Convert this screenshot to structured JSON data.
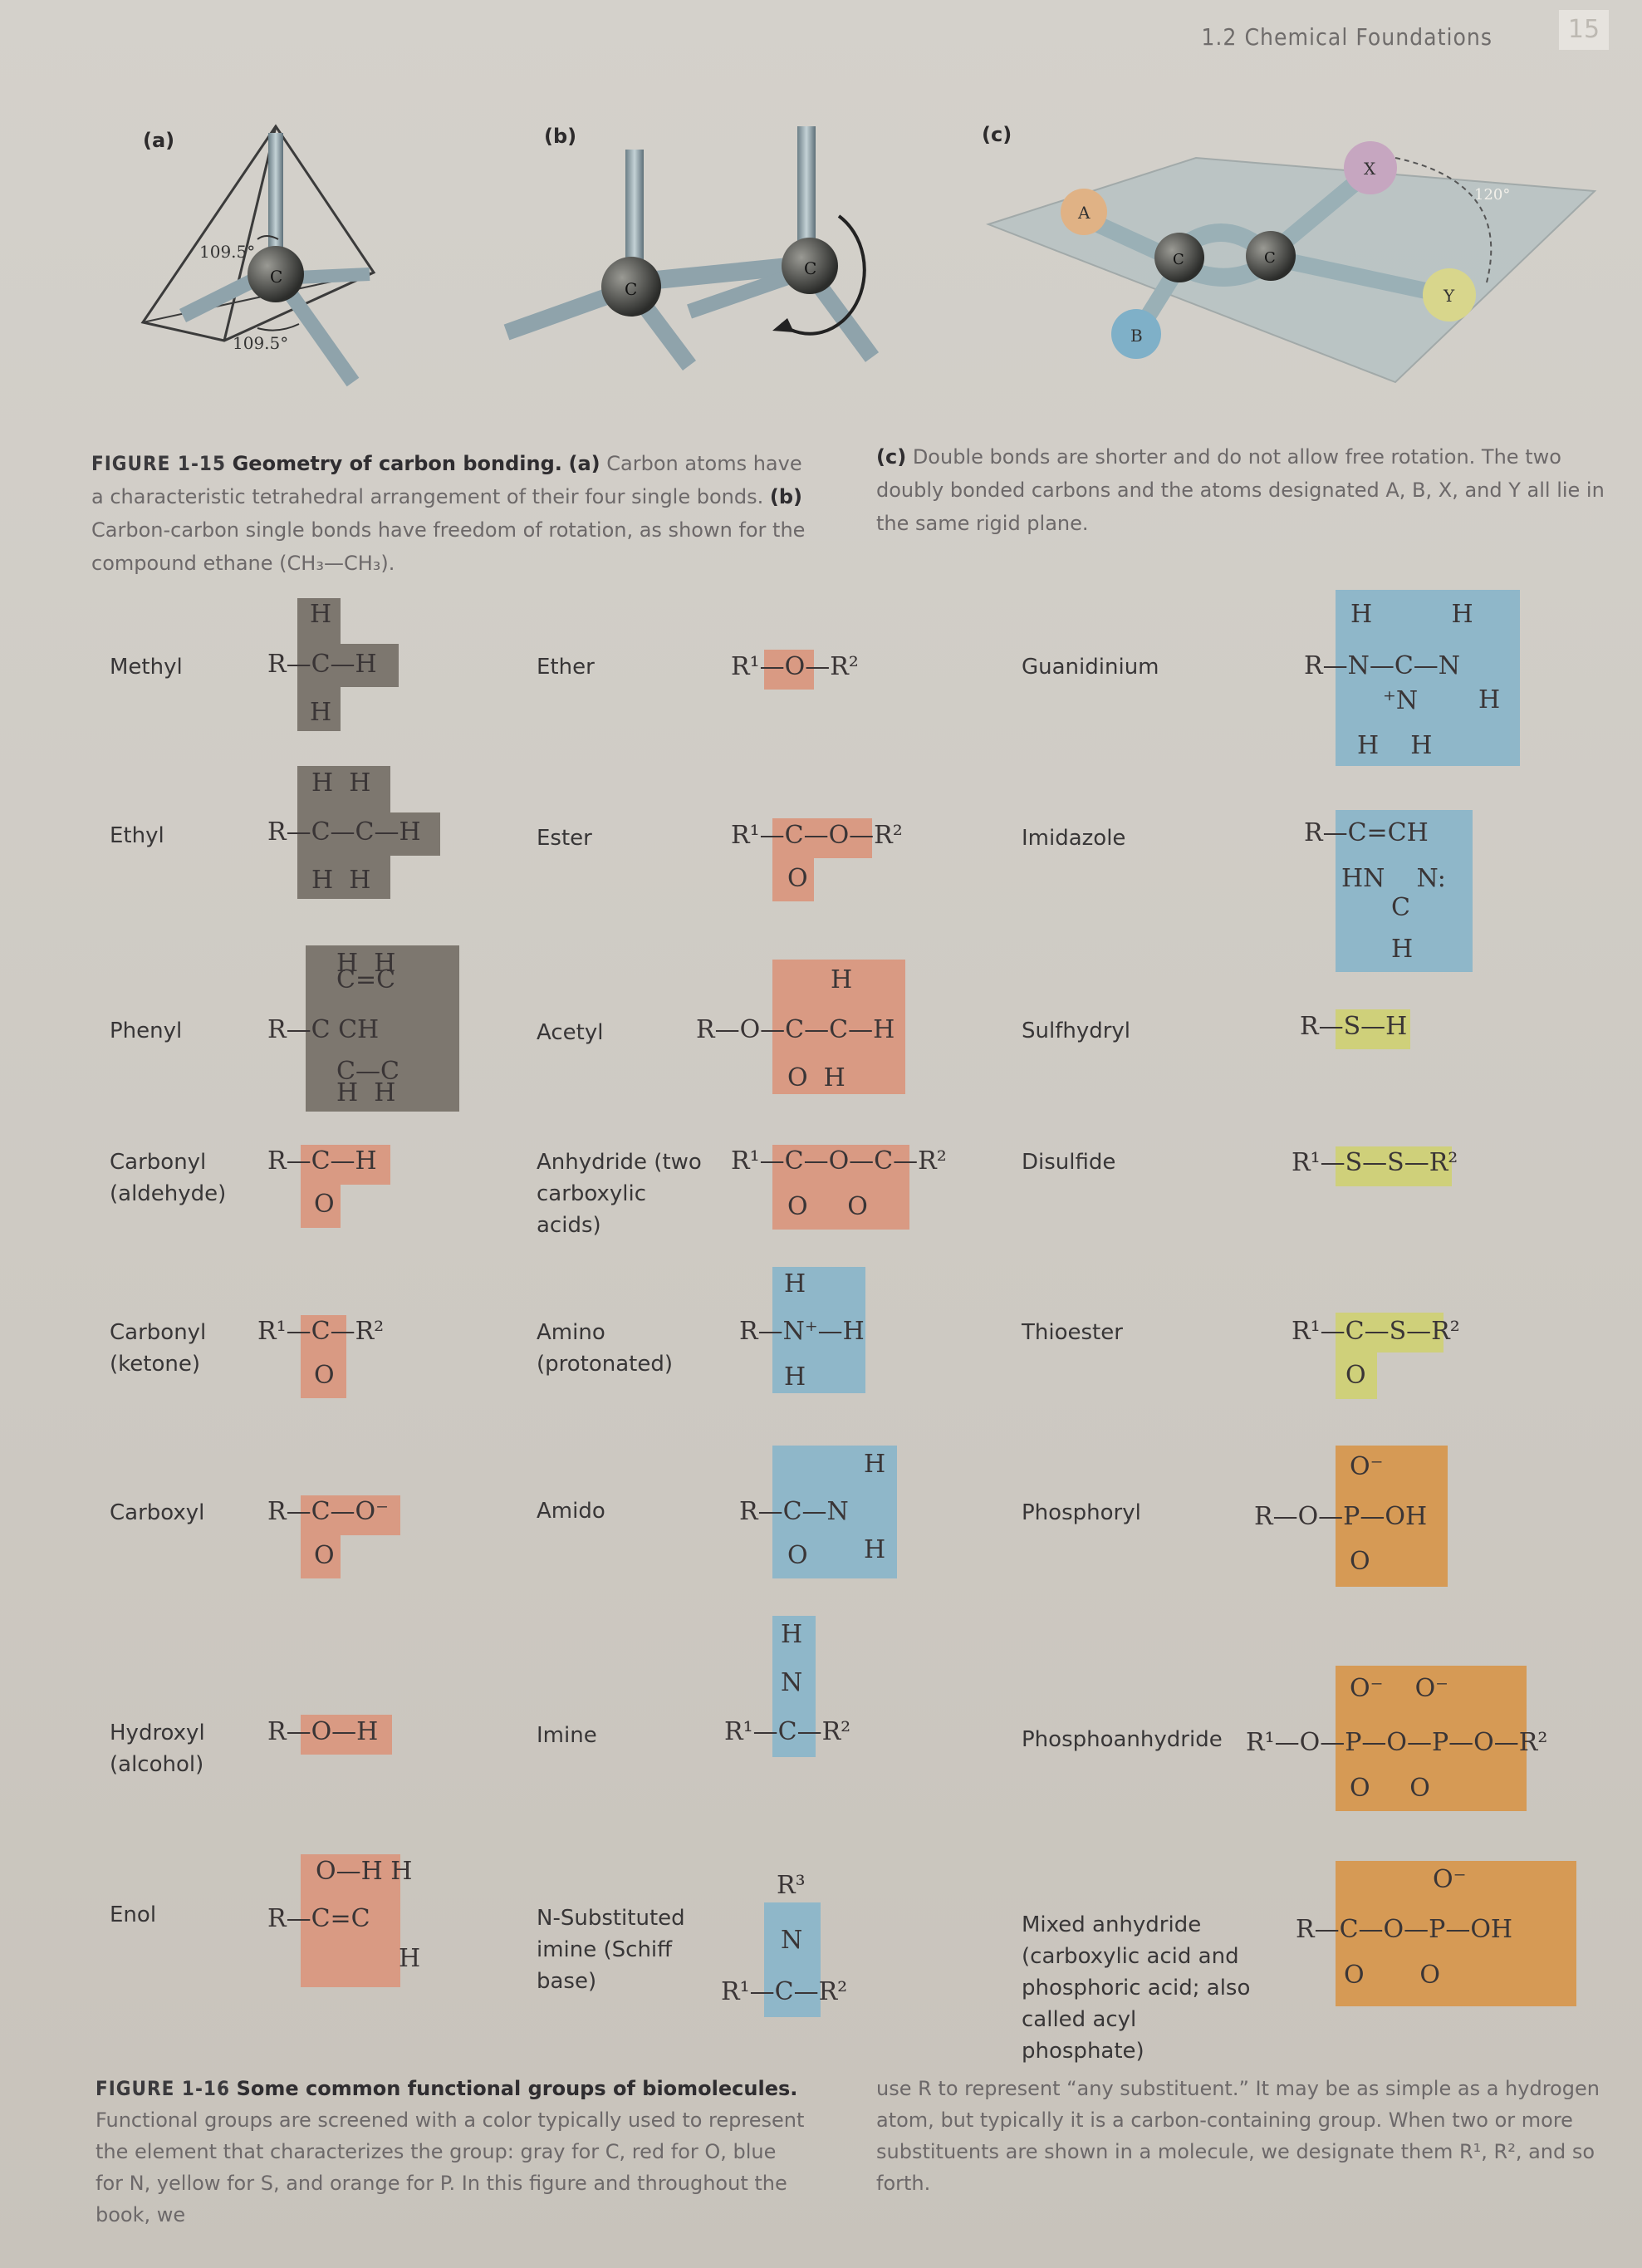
{
  "header": {
    "running_head": "1.2 Chemical Foundations",
    "page_number": "15"
  },
  "fig15": {
    "panel_a": "(a)",
    "panel_b": "(b)",
    "panel_c": "(c)",
    "angle1": "109.5°",
    "angle2": "109.5°",
    "angle3": "120°",
    "atom_c": "C",
    "atom_a": "A",
    "atom_b": "B",
    "atom_x": "X",
    "atom_y": "Y",
    "caption_number": "FIGURE 1-15",
    "caption_title": "Geometry of carbon bonding.",
    "caption_a_label": "(a)",
    "caption_a_text": "Carbon atoms have a characteristic tetrahedral arrangement of their four single bonds.",
    "caption_b_label": "(b)",
    "caption_b_text": "Carbon-carbon single bonds have freedom of rotation, as shown for the compound ethane (CH₃—CH₃).",
    "caption_c_label": "(c)",
    "caption_c_text": "Double bonds are shorter and do not allow free rotation. The two doubly bonded carbons and the atoms designated A, B, X, and Y all lie in the same rigid plane."
  },
  "groups": {
    "methyl": "Methyl",
    "ethyl": "Ethyl",
    "phenyl": "Phenyl",
    "carbonyl_aldehyde": "Carbonyl (aldehyde)",
    "carbonyl_ketone": "Carbonyl (ketone)",
    "carboxyl": "Carboxyl",
    "hydroxyl": "Hydroxyl (alcohol)",
    "enol": "Enol",
    "ether": "Ether",
    "ester": "Ester",
    "acetyl": "Acetyl",
    "anhydride": "Anhydride (two carboxylic acids)",
    "amino": "Amino (protonated)",
    "amido": "Amido",
    "imine": "Imine",
    "schiff": "N-Substituted imine (Schiff base)",
    "guanidinium": "Guanidinium",
    "imidazole": "Imidazole",
    "sulfhydryl": "Sulfhydryl",
    "disulfide": "Disulfide",
    "thioester": "Thioester",
    "phosphoryl": "Phosphoryl",
    "phosphoanhydride": "Phosphoanhydride",
    "mixed_anhydride": "Mixed anhydride (carboxylic acid and phosphoric acid; also called acyl phosphate)"
  },
  "formulas": {
    "methyl": "R—C—H",
    "ethyl": "R—C—C—H",
    "phenyl": "R—C CH",
    "aldehyde": "R—C—H",
    "ketone": "R¹—C—R²",
    "carboxyl": "R—C—O⁻",
    "hydroxyl": "R—O—H",
    "enol": "R—C=C",
    "ether": "R¹—O—R²",
    "ester": "R¹—C—O—R²",
    "acetyl": "R—O—C—C—H",
    "anhydride": "R¹—C—O—C—R²",
    "amino": "R—N⁺—H",
    "amido": "R—C—N",
    "imine": "R¹—C—R²",
    "schiff": "R¹—C—R²",
    "guanidinium": "R—N—C—N",
    "imidazole": "R—C=CH",
    "sulfhydryl": "R—S—H",
    "disulfide": "R¹—S—S—R²",
    "thioester": "R¹—C—S—R²",
    "phosphoryl": "R—O—P—OH",
    "phosphoanhydride": "R¹—O—P—O—P—O—R²",
    "mixed": "R—C—O—P—OH"
  },
  "fig16": {
    "caption_number": "FIGURE 1-16",
    "caption_title": "Some common functional groups of biomolecules.",
    "caption_text_left": "Functional groups are screened with a color typically used to represent the element that characterizes the group: gray for C, red for O, blue for N, yellow for S, and orange for P. In this figure and throughout the book, we",
    "caption_text_right": "use R to represent “any substituent.” It may be as simple as a hydrogen atom, but typically it is a carbon-containing group. When two or more substituents are shown in a molecule, we designate them R¹, R², and so forth."
  },
  "colors": {
    "gray": "#7d776f",
    "red": "#d99a83",
    "blue": "#8fb7c9",
    "yellow": "#cfd07a",
    "orange": "#d69a55"
  }
}
